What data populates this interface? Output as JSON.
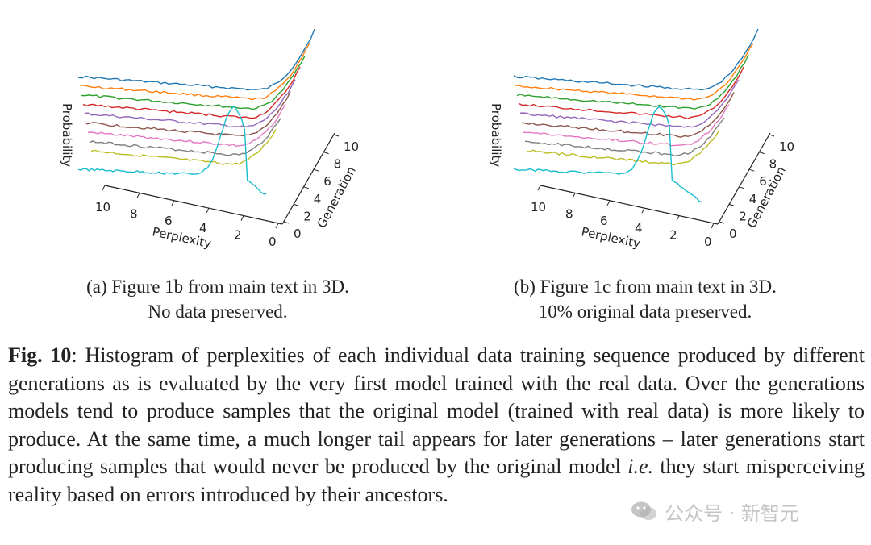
{
  "subfigures": [
    {
      "id": "a",
      "label": "(a)",
      "caption_line1": "(a) Figure 1b from main text in 3D.",
      "caption_line2": "No data preserved.",
      "z_label": "Probability",
      "x_label": "Perplexity",
      "y_label": "Generation",
      "x_ticks": [
        "10",
        "8",
        "6",
        "4",
        "2",
        "0"
      ],
      "y_ticks": [
        "0",
        "2",
        "4",
        "6",
        "8",
        "10"
      ]
    },
    {
      "id": "b",
      "label": "(b)",
      "caption_line1": "(b) Figure 1c from main text in 3D.",
      "caption_line2": "10% original data preserved.",
      "z_label": "Probability",
      "x_label": "Perplexity",
      "y_label": "Generation",
      "x_ticks": [
        "10",
        "8",
        "6",
        "4",
        "2",
        "0"
      ],
      "y_ticks": [
        "0",
        "2",
        "4",
        "6",
        "8",
        "10"
      ]
    }
  ],
  "series_colors": [
    "#1f77b4",
    "#ff7f0e",
    "#2ca02c",
    "#d62728",
    "#9467bd",
    "#8c564b",
    "#e377c2",
    "#7f7f7f",
    "#bcbd22",
    "#17becf"
  ],
  "figure_caption": {
    "label": "Fig. 10",
    "text_before_ie": ": Histogram of perplexities of each individual data training sequence produced by different generations as is evaluated by the very first model trained with the real data. Over the generations models tend to produce samples that the original model (trained with real data) is more likely to produce. At the same time, a much longer tail appears for later generations – later generations start producing samples that would never be produced by the original model ",
    "ie": "i.e.",
    "text_after_ie": " they start misperceiving reality based on errors introduced by their ancestors."
  },
  "watermark": {
    "text": "公众号 · 新智元",
    "icon": "wechat-icon"
  }
}
